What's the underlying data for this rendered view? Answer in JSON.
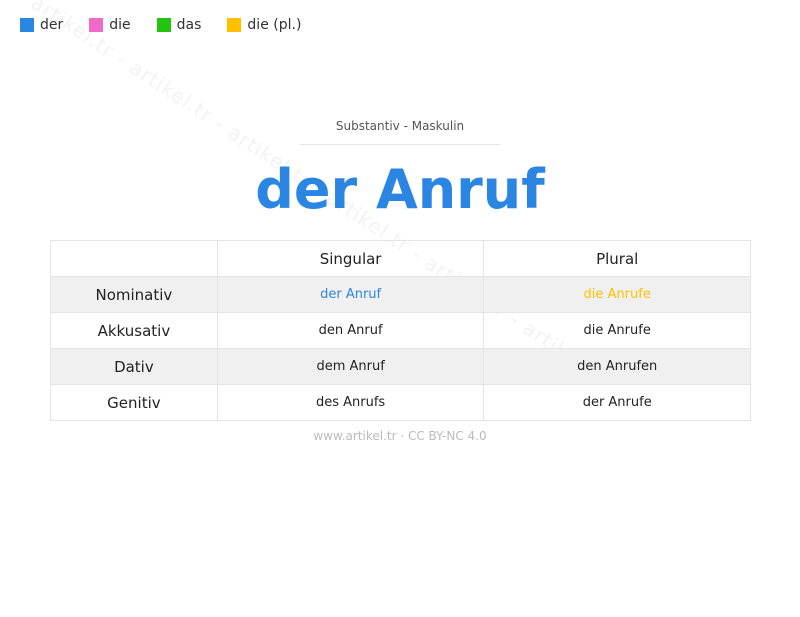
{
  "legend": [
    {
      "label": "der",
      "color": "#2b86e3"
    },
    {
      "label": "die",
      "color": "#ef69c6"
    },
    {
      "label": "das",
      "color": "#22c40f"
    },
    {
      "label": "die (pl.)",
      "color": "#ffc000"
    }
  ],
  "watermark": "artikel.tr - artikel.tr - artikel.tr - artikel.tr - artikel.tr - artikel.tr",
  "subtitle": "Substantiv  -  Maskulin",
  "title": "der Anruf",
  "table": {
    "headers": [
      "",
      "Singular",
      "Plural"
    ],
    "rows": [
      {
        "case": "Nominativ",
        "singular": "der Anruf",
        "plural": "die Anrufe"
      },
      {
        "case": "Akkusativ",
        "singular": "den Anruf",
        "plural": "die Anrufe"
      },
      {
        "case": "Dativ",
        "singular": "dem Anruf",
        "plural": "den Anrufen"
      },
      {
        "case": "Genitiv",
        "singular": "des Anrufs",
        "plural": "der Anrufe"
      }
    ],
    "highlight_colors": {
      "singular": "#2b86e3",
      "plural": "#ffc000"
    }
  },
  "footer": "www.artikel.tr · CC BY-NC 4.0"
}
